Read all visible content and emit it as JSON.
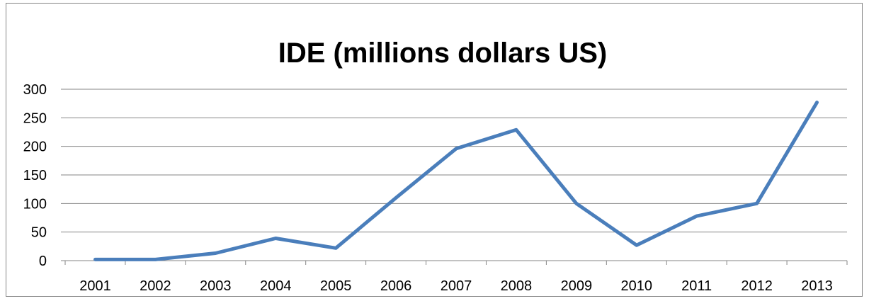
{
  "chart_data": {
    "type": "line",
    "title": "IDE  (millions dollars US)",
    "xlabel": "",
    "ylabel": "",
    "categories": [
      "2001",
      "2002",
      "2003",
      "2004",
      "2005",
      "2006",
      "2007",
      "2008",
      "2009",
      "2010",
      "2011",
      "2012",
      "2013"
    ],
    "series": [
      {
        "values": [
          2,
          2,
          13,
          39,
          22,
          110,
          196,
          229,
          100,
          27,
          78,
          100,
          277
        ]
      }
    ],
    "ylim": [
      0,
      300
    ],
    "yticks": [
      0,
      50,
      100,
      150,
      200,
      250,
      300
    ],
    "grid": true,
    "legend": "none",
    "colors": {
      "series": "#4a7ebb",
      "grid": "#868686"
    }
  }
}
